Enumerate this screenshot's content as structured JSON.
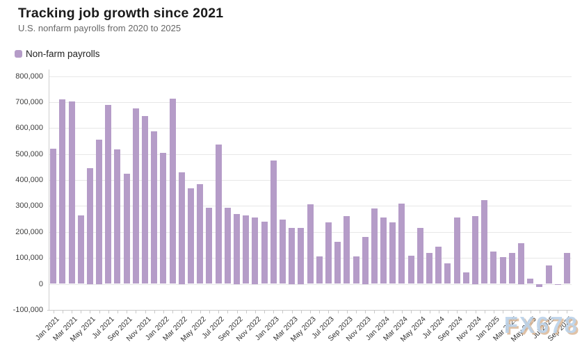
{
  "header": {
    "title": "Tracking job growth since 2021",
    "subtitle": "U.S. nonfarm payrolls from 2020 to 2025"
  },
  "legend": {
    "label": "Non-farm payrolls",
    "swatch_color": "#b59cc8"
  },
  "watermark": {
    "text": "FX678"
  },
  "chart_data": {
    "type": "bar",
    "title": "Tracking job growth since 2021",
    "subtitle": "U.S. nonfarm payrolls from 2020 to 2025",
    "series_name": "Non-farm payrolls",
    "bar_color": "#b59cc8",
    "grid": true,
    "legend_position": "top-left",
    "ylim": [
      -100000,
      800000
    ],
    "y_tick_step": 100000,
    "y_tick_labels": [
      "-100,000",
      "0",
      "100,000",
      "200,000",
      "300,000",
      "400,000",
      "500,000",
      "600,000",
      "700,000",
      "800,000"
    ],
    "x_label_every": 2,
    "categories": [
      "Jan 2021",
      "Feb 2021",
      "Mar 2021",
      "Apr 2021",
      "May 2021",
      "Jun 2021",
      "Jul 2021",
      "Aug 2021",
      "Sep 2021",
      "Oct 2021",
      "Nov 2021",
      "Dec 2021",
      "Jan 2022",
      "Feb 2022",
      "Mar 2022",
      "Apr 2022",
      "May 2022",
      "Jun 2022",
      "Jul 2022",
      "Aug 2022",
      "Sep 2022",
      "Oct 2022",
      "Nov 2022",
      "Dec 2022",
      "Jan 2023",
      "Feb 2023",
      "Mar 2023",
      "Apr 2023",
      "May 2023",
      "Jun 2023",
      "Jul 2023",
      "Aug 2023",
      "Sep 2023",
      "Oct 2023",
      "Nov 2023",
      "Dec 2023",
      "Jan 2024",
      "Feb 2024",
      "Mar 2024",
      "Apr 2024",
      "May 2024",
      "Jun 2024",
      "Jul 2024",
      "Aug 2024",
      "Sep 2024",
      "Oct 2024",
      "Nov 2024",
      "Dec 2024",
      "Jan 2025",
      "Feb 2025",
      "Mar 2025",
      "Apr 2025",
      "May 2025",
      "Jun 2025",
      "Jul 2025",
      "Aug 2025",
      "Sep 2025"
    ],
    "values": [
      520000,
      710000,
      704000,
      263000,
      447000,
      557000,
      689000,
      517000,
      424000,
      677000,
      647000,
      588000,
      504000,
      714000,
      431000,
      368000,
      384000,
      293000,
      537000,
      292000,
      269000,
      263000,
      257000,
      240000,
      475000,
      248000,
      217000,
      217000,
      306000,
      105000,
      236000,
      163000,
      262000,
      105000,
      182000,
      290000,
      256000,
      236000,
      310000,
      108000,
      215000,
      118000,
      144000,
      78000,
      255000,
      44000,
      261000,
      323000,
      125000,
      102000,
      120000,
      158000,
      19000,
      -13000,
      72000,
      -4000,
      119000
    ]
  }
}
